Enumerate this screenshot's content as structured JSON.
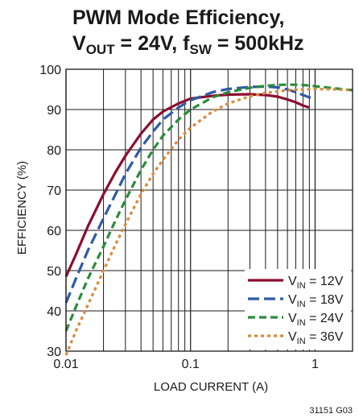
{
  "chart_data": {
    "type": "line",
    "title_line1": "PWM Mode Efficiency,",
    "title_line2": {
      "v": "V",
      "v_sub": "OUT",
      "v_val": " = 24V, ",
      "f": "f",
      "f_sub": "SW",
      "f_val": " = 500kHz"
    },
    "xlabel": "LOAD CURRENT (A)",
    "ylabel": "EFFICIENCY (%)",
    "x_scale": "log",
    "xlim": [
      0.01,
      2
    ],
    "ylim": [
      30,
      100
    ],
    "x_ticks": [
      {
        "value": 0.01,
        "label": "0.01"
      },
      {
        "value": 0.1,
        "label": "0.1"
      },
      {
        "value": 1,
        "label": "1"
      }
    ],
    "y_ticks": [
      {
        "value": 30,
        "label": "30"
      },
      {
        "value": 40,
        "label": "40"
      },
      {
        "value": 50,
        "label": "50"
      },
      {
        "value": 60,
        "label": "60"
      },
      {
        "value": 70,
        "label": "70"
      },
      {
        "value": 80,
        "label": "80"
      },
      {
        "value": 90,
        "label": "90"
      },
      {
        "value": 100,
        "label": "100"
      }
    ],
    "grid": true,
    "legend_position": "bottom-right",
    "series": [
      {
        "var": "V",
        "sub": "IN",
        "val": " = 12V",
        "color": "#8b0e2e",
        "dash": "solid",
        "points": [
          [
            0.01,
            48.5
          ],
          [
            0.012,
            54
          ],
          [
            0.015,
            61
          ],
          [
            0.02,
            69
          ],
          [
            0.025,
            74.5
          ],
          [
            0.03,
            78.5
          ],
          [
            0.04,
            84
          ],
          [
            0.05,
            87.5
          ],
          [
            0.06,
            89.5
          ],
          [
            0.08,
            91.5
          ],
          [
            0.1,
            92.7
          ],
          [
            0.15,
            93.4
          ],
          [
            0.2,
            93.7
          ],
          [
            0.3,
            93.8
          ],
          [
            0.4,
            93.6
          ],
          [
            0.5,
            93.2
          ],
          [
            0.6,
            92.5
          ],
          [
            0.7,
            91.8
          ],
          [
            0.8,
            91.0
          ],
          [
            0.9,
            90.5
          ]
        ]
      },
      {
        "var": "V",
        "sub": "IN",
        "val": " = 18V",
        "color": "#2f5aa8",
        "dash": "long-dash",
        "points": [
          [
            0.01,
            42
          ],
          [
            0.012,
            48
          ],
          [
            0.015,
            55
          ],
          [
            0.02,
            63
          ],
          [
            0.025,
            69
          ],
          [
            0.03,
            74
          ],
          [
            0.04,
            80.5
          ],
          [
            0.05,
            84.5
          ],
          [
            0.06,
            87.5
          ],
          [
            0.08,
            90.5
          ],
          [
            0.1,
            92.3
          ],
          [
            0.15,
            94.3
          ],
          [
            0.2,
            95.1
          ],
          [
            0.3,
            95.6
          ],
          [
            0.4,
            95.7
          ],
          [
            0.5,
            95.5
          ],
          [
            0.6,
            95.0
          ],
          [
            0.7,
            94.3
          ],
          [
            0.8,
            93.6
          ],
          [
            1.0,
            92.5
          ]
        ]
      },
      {
        "var": "V",
        "sub": "IN",
        "val": " = 24V",
        "color": "#2a8c3a",
        "dash": "medium-dash",
        "points": [
          [
            0.01,
            35
          ],
          [
            0.012,
            41
          ],
          [
            0.015,
            48
          ],
          [
            0.02,
            56
          ],
          [
            0.025,
            62.5
          ],
          [
            0.03,
            67.5
          ],
          [
            0.04,
            75
          ],
          [
            0.05,
            80
          ],
          [
            0.06,
            83.5
          ],
          [
            0.08,
            87.5
          ],
          [
            0.1,
            90
          ],
          [
            0.15,
            93
          ],
          [
            0.2,
            94.3
          ],
          [
            0.3,
            95.4
          ],
          [
            0.4,
            95.9
          ],
          [
            0.5,
            96.1
          ],
          [
            0.6,
            96.2
          ],
          [
            0.8,
            96.1
          ],
          [
            1.0,
            95.8
          ],
          [
            1.5,
            95.2
          ],
          [
            2.0,
            94.8
          ]
        ]
      },
      {
        "var": "V",
        "sub": "IN",
        "val": " = 36V",
        "color": "#d98a3a",
        "dash": "short-dash",
        "points": [
          [
            0.01,
            29
          ],
          [
            0.012,
            35
          ],
          [
            0.015,
            41.5
          ],
          [
            0.02,
            50
          ],
          [
            0.025,
            56.5
          ],
          [
            0.03,
            61.5
          ],
          [
            0.04,
            69
          ],
          [
            0.05,
            74
          ],
          [
            0.06,
            77.5
          ],
          [
            0.08,
            82.5
          ],
          [
            0.1,
            85.5
          ],
          [
            0.15,
            89.5
          ],
          [
            0.2,
            91.5
          ],
          [
            0.3,
            93.3
          ],
          [
            0.4,
            94.1
          ],
          [
            0.5,
            94.5
          ],
          [
            0.6,
            94.8
          ],
          [
            0.8,
            95.0
          ],
          [
            1.0,
            95.1
          ],
          [
            1.5,
            95.0
          ],
          [
            2.0,
            94.8
          ]
        ]
      }
    ]
  },
  "figure_code": "31151 G03"
}
